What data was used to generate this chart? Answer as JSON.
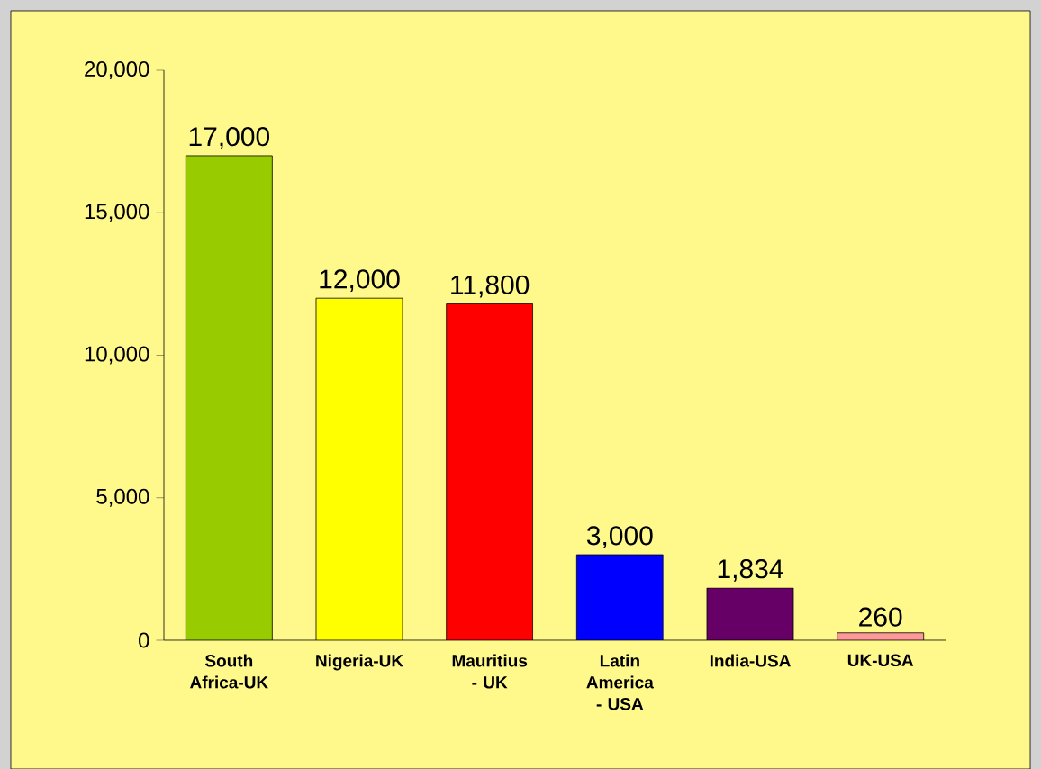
{
  "chart_data": {
    "type": "bar",
    "categories": [
      "South Africa-UK",
      "Nigeria-UK",
      "Mauritius - UK",
      "Latin America - USA",
      "India-USA",
      "UK-USA"
    ],
    "values": [
      17000,
      12000,
      11800,
      3000,
      1834,
      260
    ],
    "colors": [
      "#99cc00",
      "#ffff00",
      "#ff0000",
      "#0000ff",
      "#660066",
      "#ff9999"
    ],
    "value_labels": [
      "17,000",
      "12,000",
      "11,800",
      "3,000",
      "1,834",
      "260"
    ],
    "ylim": [
      0,
      20000
    ],
    "yticks": [
      0,
      {
        "value": 5000,
        "label": "5,000"
      },
      {
        "value": 10000,
        "label": "10,000"
      },
      {
        "value": 15000,
        "label": "15,000"
      },
      {
        "value": 20000,
        "label": "20,000"
      }
    ],
    "grid": false
  }
}
